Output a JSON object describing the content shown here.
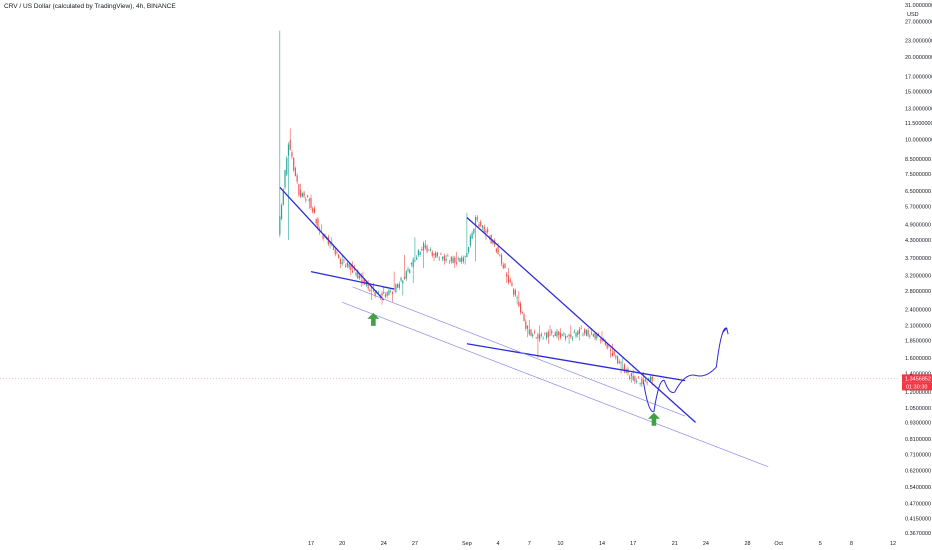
{
  "header": {
    "title": "CRV / US Dollar (calculated by TradingView), 4h, BINANCE"
  },
  "axis": {
    "currency_label": "USD",
    "price_ticks": [
      "31.0000000",
      "27.0000000",
      "23.0000000",
      "20.0000000",
      "17.0000000",
      "15.0000000",
      "13.0000000",
      "11.5000000",
      "10.0000000",
      "8.5000000",
      "7.5000000",
      "6.5000000",
      "5.7000000",
      "4.9000000",
      "4.3000000",
      "3.7000000",
      "3.2000000",
      "2.8000000",
      "2.4000000",
      "2.1000000",
      "1.8500000",
      "1.6000000",
      "1.4000000",
      "1.2000000",
      "1.0500000",
      "0.9300000",
      "0.8100000",
      "0.7100000",
      "0.6200000",
      "0.5400000",
      "0.4700000",
      "0.4150000",
      "0.3670000"
    ],
    "time_ticks": [
      "17",
      "20",
      "24",
      "27",
      "Sep",
      "4",
      "7",
      "10",
      "14",
      "17",
      "21",
      "24",
      "28",
      "Oct",
      "5",
      "8",
      "12"
    ]
  },
  "last_price": {
    "value": "1.3456852",
    "countdown": "01:30:30",
    "color": "#f23645"
  },
  "colors": {
    "up": "#26a69a",
    "down": "#ef5350",
    "trend": "#2b2bd6",
    "channel": "#8a8ae6",
    "arrow_green": "#43a047",
    "projection": "#2b2bd6"
  },
  "chart_data": {
    "type": "candlestick",
    "title": "CRV / US Dollar (calculated by TradingView), 4h, BINANCE",
    "xlabel": "",
    "ylabel": "",
    "y_scale": "log",
    "ylim": [
      0.367,
      31.0
    ],
    "x_range": [
      "Aug 13",
      "Oct 12"
    ],
    "grid": false,
    "price_series": {
      "name": "CRV/USD",
      "x": [
        "Aug 14",
        "Aug 15",
        "Aug 16",
        "Aug 17",
        "Aug 18",
        "Aug 19",
        "Aug 20",
        "Aug 21",
        "Aug 22",
        "Aug 23",
        "Aug 24",
        "Aug 25",
        "Aug 26",
        "Aug 27",
        "Aug 28",
        "Aug 29",
        "Aug 30",
        "Aug 31",
        "Sep 1",
        "Sep 2",
        "Sep 3",
        "Sep 4",
        "Sep 5",
        "Sep 6",
        "Sep 7",
        "Sep 8",
        "Sep 9",
        "Sep 10",
        "Sep 11",
        "Sep 12",
        "Sep 13",
        "Sep 14",
        "Sep 15",
        "Sep 16",
        "Sep 17",
        "Sep 18"
      ],
      "open": [
        4.5,
        9.8,
        6.4,
        6.0,
        4.6,
        4.2,
        3.6,
        3.4,
        3.1,
        2.8,
        2.7,
        2.8,
        3.1,
        3.6,
        4.1,
        3.8,
        3.7,
        3.6,
        3.7,
        5.1,
        4.6,
        4.0,
        3.2,
        2.6,
        2.0,
        1.9,
        1.95,
        1.95,
        1.9,
        2.0,
        1.95,
        1.9,
        1.7,
        1.5,
        1.35,
        1.3
      ],
      "close": [
        9.8,
        6.4,
        6.0,
        4.6,
        4.2,
        3.6,
        3.4,
        3.1,
        2.8,
        2.7,
        2.8,
        3.1,
        3.6,
        4.1,
        3.8,
        3.7,
        3.6,
        3.7,
        5.1,
        4.6,
        4.0,
        3.2,
        2.6,
        2.0,
        1.9,
        1.95,
        1.95,
        1.9,
        2.0,
        1.95,
        1.9,
        1.7,
        1.5,
        1.35,
        1.3,
        1.35
      ],
      "high": [
        25.0,
        11.0,
        6.9,
        6.3,
        4.9,
        4.4,
        3.8,
        3.6,
        3.3,
        3.0,
        2.9,
        3.3,
        3.8,
        4.4,
        4.3,
        3.9,
        3.8,
        3.9,
        5.4,
        5.3,
        4.8,
        4.2,
        3.4,
        2.8,
        2.2,
        2.1,
        2.1,
        2.05,
        2.1,
        2.1,
        2.05,
        2.0,
        1.8,
        1.6,
        1.45,
        1.42
      ],
      "low": [
        4.3,
        6.2,
        5.6,
        4.5,
        4.0,
        3.4,
        3.2,
        2.9,
        2.6,
        2.5,
        2.55,
        2.7,
        3.0,
        3.4,
        3.6,
        3.5,
        3.4,
        3.5,
        3.6,
        4.3,
        3.9,
        3.0,
        2.5,
        1.9,
        1.6,
        1.8,
        1.85,
        1.8,
        1.85,
        1.9,
        1.8,
        1.6,
        1.4,
        1.3,
        1.25,
        1.27
      ]
    },
    "annotations": [
      {
        "type": "trendline",
        "name": "falling-wedge-1-upper",
        "from": [
          "Aug 14",
          6.7
        ],
        "to": [
          "Aug 24",
          2.6
        ]
      },
      {
        "type": "trendline",
        "name": "falling-wedge-1-lower",
        "from": [
          "Aug 17",
          3.3
        ],
        "to": [
          "Aug 25",
          2.85
        ]
      },
      {
        "type": "trendline",
        "name": "descending-resistance",
        "from": [
          "Sep 1",
          5.2
        ],
        "to": [
          "Sep 23",
          0.93
        ]
      },
      {
        "type": "trendline",
        "name": "support-line",
        "from": [
          "Sep 1",
          1.8
        ],
        "to": [
          "Sep 22",
          1.32
        ]
      },
      {
        "type": "channel-line",
        "name": "channel-upper",
        "from": [
          "Aug 21",
          2.9
        ],
        "to": [
          "Sep 22",
          0.98
        ]
      },
      {
        "type": "channel-line",
        "name": "channel-lower",
        "from": [
          "Aug 20",
          2.55
        ],
        "to": [
          "Sep 30",
          0.64
        ]
      },
      {
        "type": "arrow-up",
        "name": "buy-arrow-1",
        "at": [
          "Aug 23",
          2.2
        ]
      },
      {
        "type": "arrow-up",
        "name": "buy-arrow-2",
        "at": [
          "Sep 19",
          0.95
        ]
      },
      {
        "type": "projection-path",
        "name": "projected-path",
        "points": [
          [
            "Sep 18",
            1.3
          ],
          [
            "Sep 19",
            1.02
          ],
          [
            "Sep 20",
            1.32
          ],
          [
            "Sep 21",
            1.2
          ],
          [
            "Sep 23",
            1.38
          ],
          [
            "Sep 25",
            1.48
          ],
          [
            "Sep 26",
            2.05
          ]
        ]
      }
    ]
  }
}
